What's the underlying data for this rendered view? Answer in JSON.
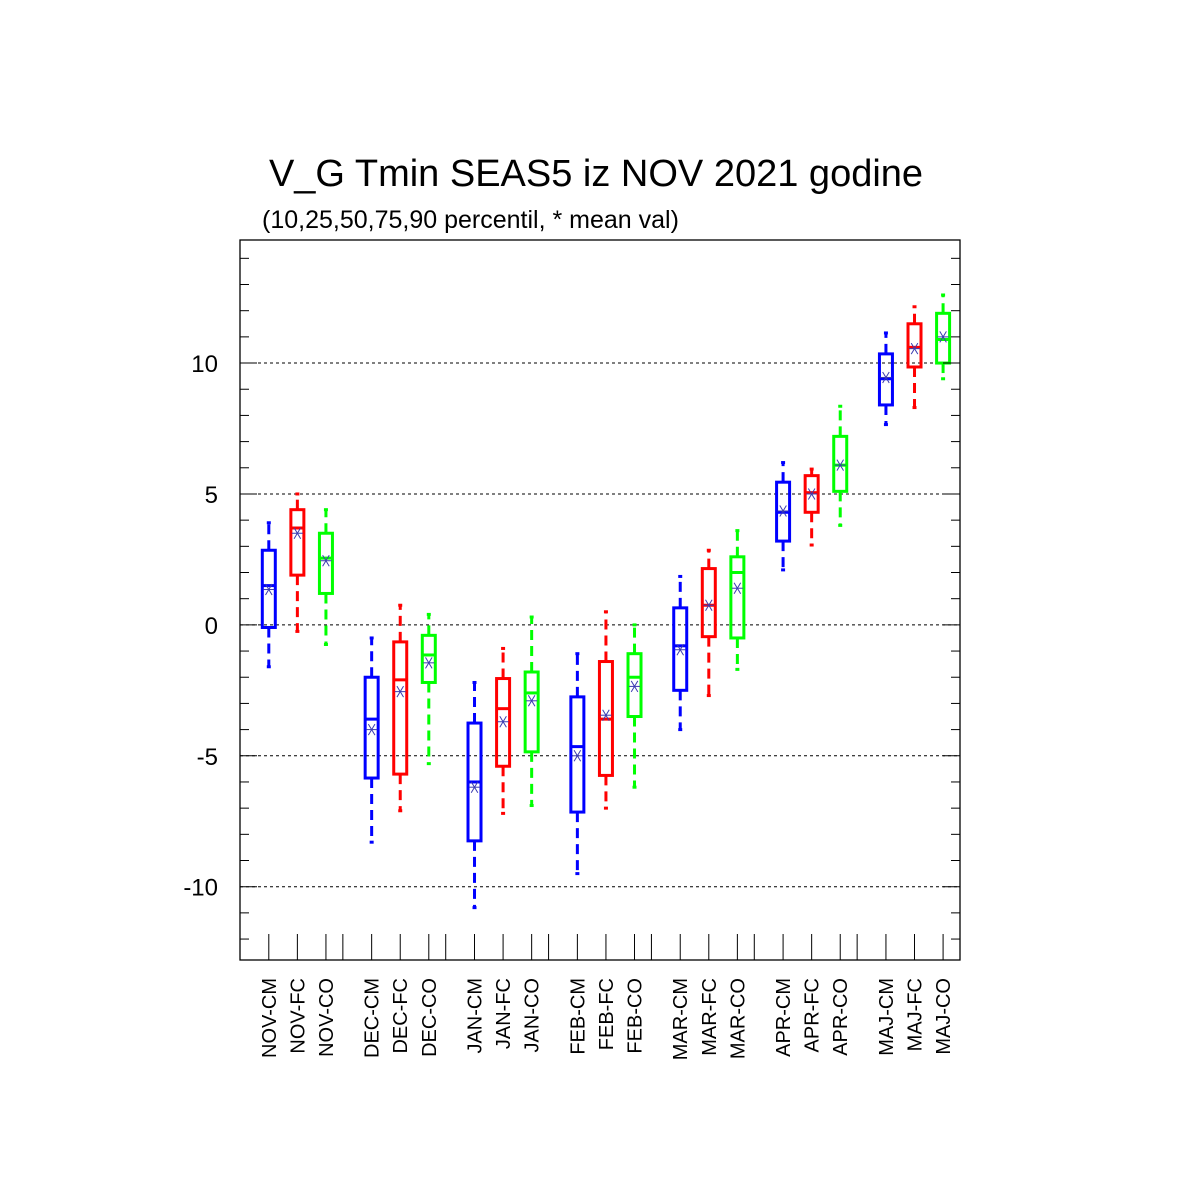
{
  "chart_data": {
    "type": "box",
    "title": "V_G Tmin SEAS5 iz NOV 2021 godine",
    "subtitle": "(10,25,50,75,90 percentil, * mean val)",
    "xlabel": "",
    "ylabel": "",
    "ylim": [
      -12.8,
      14.7
    ],
    "yticks": [
      -10,
      -5,
      0,
      5,
      10
    ],
    "ytick_labels": [
      "-10",
      "-5",
      "0",
      "5",
      "10"
    ],
    "grid": "horizontal dashed at major ticks",
    "categories": [
      "NOV-CM",
      "NOV-FC",
      "NOV-CO",
      "DEC-CM",
      "DEC-FC",
      "DEC-CO",
      "JAN-CM",
      "JAN-FC",
      "JAN-CO",
      "FEB-CM",
      "FEB-FC",
      "FEB-CO",
      "MAR-CM",
      "MAR-FC",
      "MAR-CO",
      "APR-CM",
      "APR-FC",
      "APR-CO",
      "MAJ-CM",
      "MAJ-FC",
      "MAJ-CO"
    ],
    "colors": {
      "CM": "#0000ff",
      "FC": "#ff0000",
      "CO": "#00ff00",
      "mean_marker": "#3b3bb0"
    },
    "boxes": [
      {
        "group": "CM",
        "p10": -1.6,
        "p25": -0.1,
        "p50": 1.5,
        "p75": 2.85,
        "p90": 3.9,
        "mean": 1.35
      },
      {
        "group": "FC",
        "p10": -0.25,
        "p25": 1.9,
        "p50": 3.7,
        "p75": 4.4,
        "p90": 5.0,
        "mean": 3.5
      },
      {
        "group": "CO",
        "p10": -0.75,
        "p25": 1.2,
        "p50": 2.55,
        "p75": 3.5,
        "p90": 4.4,
        "mean": 2.45
      },
      {
        "group": "CM",
        "p10": -8.3,
        "p25": -5.85,
        "p50": -3.6,
        "p75": -2.0,
        "p90": -0.5,
        "mean": -4.0
      },
      {
        "group": "FC",
        "p10": -7.1,
        "p25": -5.7,
        "p50": -2.1,
        "p75": -0.65,
        "p90": 0.75,
        "mean": -2.55
      },
      {
        "group": "CO",
        "p10": -5.3,
        "p25": -2.2,
        "p50": -1.15,
        "p75": -0.4,
        "p90": 0.4,
        "mean": -1.45
      },
      {
        "group": "CM",
        "p10": -10.8,
        "p25": -8.25,
        "p50": -6.0,
        "p75": -3.75,
        "p90": -2.2,
        "mean": -6.2
      },
      {
        "group": "FC",
        "p10": -7.2,
        "p25": -5.4,
        "p50": -3.2,
        "p75": -2.05,
        "p90": -0.9,
        "mean": -3.7
      },
      {
        "group": "CO",
        "p10": -6.9,
        "p25": -4.85,
        "p50": -2.6,
        "p75": -1.8,
        "p90": 0.3,
        "mean": -2.9
      },
      {
        "group": "CM",
        "p10": -9.5,
        "p25": -7.15,
        "p50": -4.65,
        "p75": -2.75,
        "p90": -1.1,
        "mean": -5.0
      },
      {
        "group": "FC",
        "p10": -7.0,
        "p25": -5.75,
        "p50": -3.6,
        "p75": -1.4,
        "p90": 0.5,
        "mean": -3.45
      },
      {
        "group": "CO",
        "p10": -6.2,
        "p25": -3.5,
        "p50": -2.0,
        "p75": -1.1,
        "p90": 0.0,
        "mean": -2.35
      },
      {
        "group": "CM",
        "p10": -4.0,
        "p25": -2.5,
        "p50": -0.8,
        "p75": 0.65,
        "p90": 1.85,
        "mean": -0.95
      },
      {
        "group": "FC",
        "p10": -2.7,
        "p25": -0.45,
        "p50": 0.75,
        "p75": 2.15,
        "p90": 2.85,
        "mean": 0.75
      },
      {
        "group": "CO",
        "p10": -1.7,
        "p25": -0.5,
        "p50": 2.0,
        "p75": 2.6,
        "p90": 3.6,
        "mean": 1.4
      },
      {
        "group": "CM",
        "p10": 2.1,
        "p25": 3.2,
        "p50": 4.3,
        "p75": 5.45,
        "p90": 6.2,
        "mean": 4.35
      },
      {
        "group": "FC",
        "p10": 3.05,
        "p25": 4.3,
        "p50": 5.05,
        "p75": 5.7,
        "p90": 5.95,
        "mean": 5.0
      },
      {
        "group": "CO",
        "p10": 3.8,
        "p25": 5.1,
        "p50": 6.1,
        "p75": 7.2,
        "p90": 8.35,
        "mean": 6.1
      },
      {
        "group": "CM",
        "p10": 7.65,
        "p25": 8.4,
        "p50": 9.4,
        "p75": 10.35,
        "p90": 11.15,
        "mean": 9.45
      },
      {
        "group": "FC",
        "p10": 8.3,
        "p25": 9.85,
        "p50": 10.6,
        "p75": 11.5,
        "p90": 12.15,
        "mean": 10.55
      },
      {
        "group": "CO",
        "p10": 9.4,
        "p25": 10.0,
        "p50": 10.9,
        "p75": 11.9,
        "p90": 12.6,
        "mean": 11.0
      }
    ]
  }
}
